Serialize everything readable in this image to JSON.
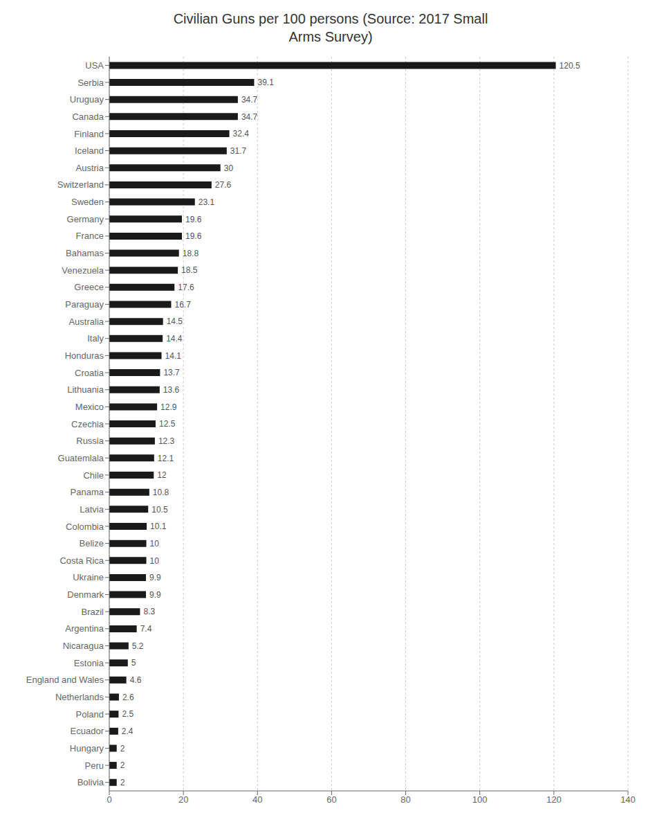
{
  "chart_data": {
    "type": "bar",
    "orientation": "horizontal",
    "title": "Civilian Guns per 100 persons (Source: 2017 Small\nArms Survey)",
    "categories": [
      "USA",
      "Serbia",
      "Uruguay",
      "Canada",
      "Finland",
      "Iceland",
      "Austria",
      "Switzerland",
      "Sweden",
      "Germany",
      "France",
      "Bahamas",
      "Venezuela",
      "Greece",
      "Paraguay",
      "Australia",
      "Italy",
      "Honduras",
      "Croatia",
      "Lithuania",
      "Mexico",
      "Czechia",
      "Russia",
      "Guatemlala",
      "Chile",
      "Panama",
      "Latvia",
      "Colombia",
      "Belize",
      "Costa Rica",
      "Ukraine",
      "Denmark",
      "Brazil",
      "Argentina",
      "Nicaragua",
      "Estonia",
      "England and Wales",
      "Netherlands",
      "Poland",
      "Ecuador",
      "Hungary",
      "Peru",
      "Bolivia"
    ],
    "values": [
      120.5,
      39.1,
      34.7,
      34.7,
      32.4,
      31.7,
      30.0,
      27.6,
      23.1,
      19.6,
      19.6,
      18.8,
      18.5,
      17.6,
      16.7,
      14.5,
      14.4,
      14.1,
      13.7,
      13.6,
      12.9,
      12.5,
      12.3,
      12.1,
      12.0,
      10.8,
      10.5,
      10.1,
      10.0,
      10.0,
      9.9,
      9.9,
      8.3,
      7.4,
      5.2,
      5.0,
      4.6,
      2.6,
      2.5,
      2.4,
      2.0,
      2.0,
      2.0
    ],
    "color": "#1a1a1a",
    "xlim": [
      0,
      140
    ],
    "xticks": [
      0,
      20,
      40,
      60,
      80,
      100,
      120,
      140
    ],
    "grid": true,
    "data_labels": true
  }
}
